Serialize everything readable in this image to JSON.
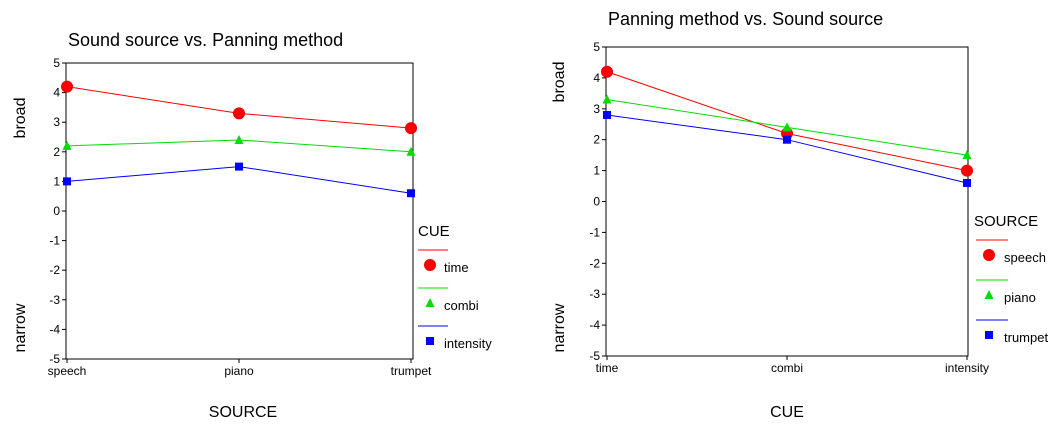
{
  "chart_data": [
    {
      "type": "line",
      "title": "Sound source vs. Panning method",
      "xlabel": "SOURCE",
      "ylabel_top": "broad",
      "ylabel_bottom": "narrow",
      "categories": [
        "speech",
        "piano",
        "trumpet"
      ],
      "ylim": [
        -5,
        5
      ],
      "yticks": [
        "5",
        "4",
        "3",
        "2",
        "1",
        "0",
        "-1",
        "-2",
        "-3",
        "-4",
        "-5"
      ],
      "legend_title": "CUE",
      "legend_position": "right",
      "series": [
        {
          "name": "time",
          "color": "#ff0000",
          "marker": "circle",
          "values": [
            4.2,
            3.3,
            2.8
          ]
        },
        {
          "name": "combi",
          "color": "#00dd00",
          "marker": "triangle",
          "values": [
            2.2,
            2.4,
            2.0
          ]
        },
        {
          "name": "intensity",
          "color": "#0000ff",
          "marker": "square",
          "values": [
            1.0,
            1.5,
            0.6
          ]
        }
      ]
    },
    {
      "type": "line",
      "title": "Panning method vs. Sound source",
      "xlabel": "CUE",
      "ylabel_top": "broad",
      "ylabel_bottom": "narrow",
      "categories": [
        "time",
        "combi",
        "intensity"
      ],
      "ylim": [
        -5,
        5
      ],
      "yticks": [
        "5",
        "4",
        "3",
        "2",
        "1",
        "0",
        "-1",
        "-2",
        "-3",
        "-4",
        "-5"
      ],
      "legend_title": "SOURCE",
      "legend_position": "right",
      "series": [
        {
          "name": "speech",
          "color": "#ff0000",
          "marker": "circle",
          "values": [
            4.2,
            2.2,
            1.0
          ]
        },
        {
          "name": "piano",
          "color": "#00dd00",
          "marker": "triangle",
          "values": [
            3.3,
            2.4,
            1.5
          ]
        },
        {
          "name": "trumpet",
          "color": "#0000ff",
          "marker": "square",
          "values": [
            2.8,
            2.0,
            0.6
          ]
        }
      ]
    }
  ]
}
